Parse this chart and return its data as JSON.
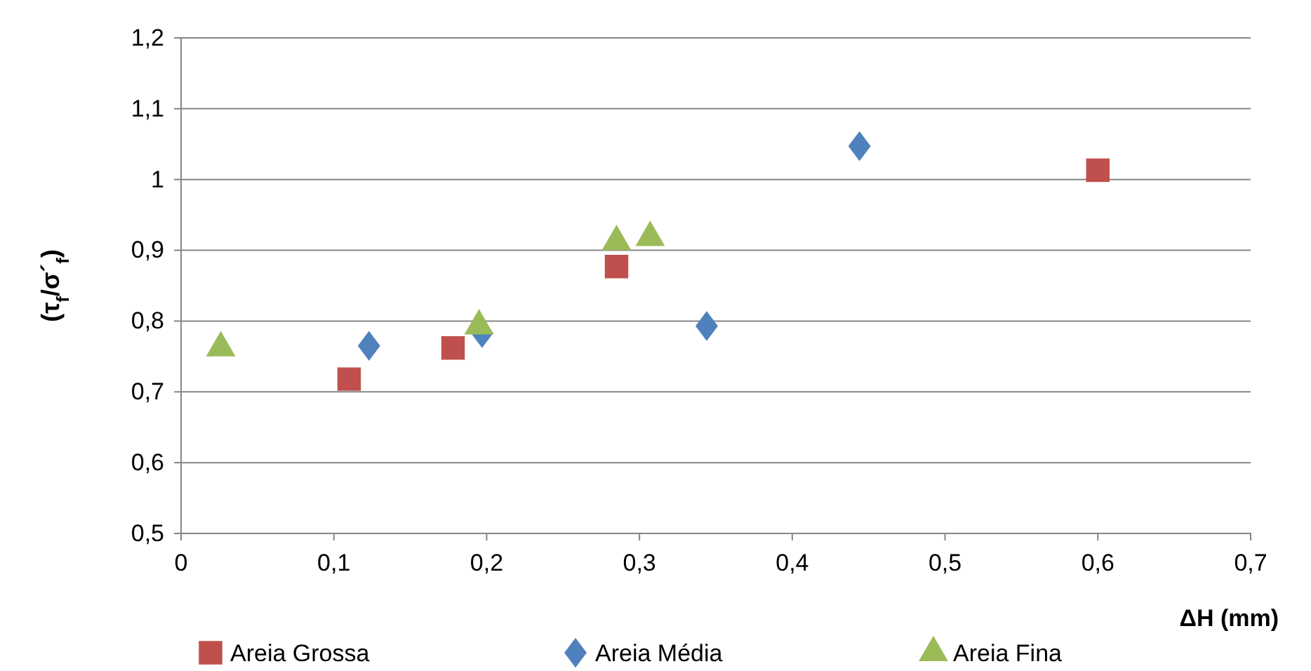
{
  "chart_data": {
    "type": "scatter",
    "xlabel": "ΔH (mm)",
    "ylabel": "(τ$_{f}$/σ´$_{f}$)",
    "xlim": [
      0,
      0.7
    ],
    "xticks": [
      0,
      {
        "value": 0.1,
        "label": "0,1"
      },
      {
        "value": 0.2,
        "label": "0,2"
      },
      {
        "value": 0.3,
        "label": "0,3"
      },
      {
        "value": 0.4,
        "label": "0,4"
      },
      {
        "value": 0.5,
        "label": "0,5"
      },
      {
        "value": 0.6,
        "label": "0,6"
      },
      {
        "value": 0.7,
        "label": "0,7"
      }
    ],
    "ylim": [
      0.5,
      1.2
    ],
    "yticks": [
      {
        "value": 0.5,
        "label": "0,5"
      },
      {
        "value": 0.6,
        "label": "0,6"
      },
      {
        "value": 0.7,
        "label": "0,7"
      },
      {
        "value": 0.8,
        "label": "0,8"
      },
      {
        "value": 0.9,
        "label": "0,9"
      },
      1,
      {
        "value": 1.1,
        "label": "1,1"
      },
      {
        "value": 1.2,
        "label": "1,2"
      }
    ],
    "grid": "y",
    "legend": "bottom",
    "series": [
      {
        "name": "Areia Grossa",
        "color": "#c0504d",
        "marker": "square",
        "x": [
          0.11,
          0.178,
          0.285,
          0.6
        ],
        "values": [
          0.718,
          0.762,
          0.877,
          1.013
        ]
      },
      {
        "name": "Areia Média",
        "color": "#4f81bd",
        "marker": "diamond",
        "x": [
          0.123,
          0.197,
          0.344,
          0.444
        ],
        "values": [
          0.765,
          0.783,
          0.793,
          1.047
        ]
      },
      {
        "name": "Areia Fina",
        "color": "#9bbb59",
        "marker": "triangle",
        "x": [
          0.026,
          0.195,
          0.285,
          0.307
        ],
        "values": [
          0.762,
          0.793,
          0.912,
          0.918
        ]
      }
    ]
  }
}
